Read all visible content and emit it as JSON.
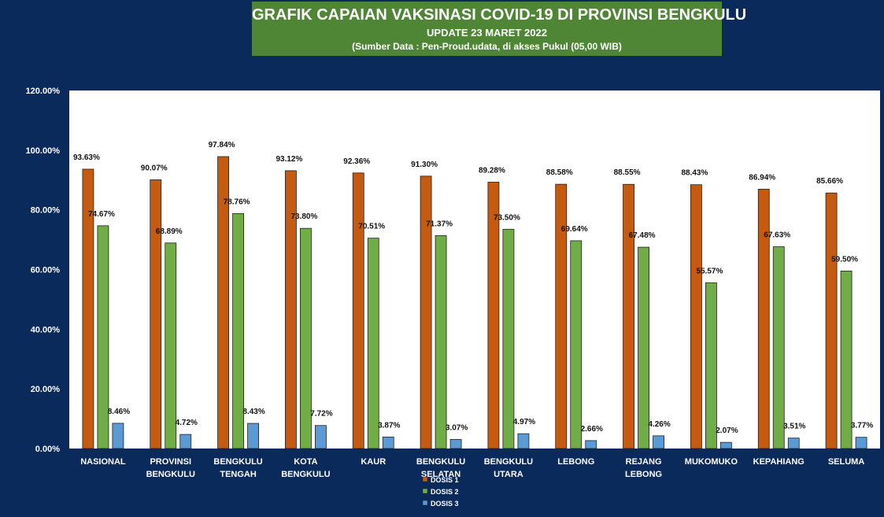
{
  "header": {
    "title": "GRAFIK CAPAIAN VAKSINASI COVID-19 DI PROVINSI BENGKULU",
    "update": "UPDATE  23  MARET  2022",
    "source": "(Sumber Data : Pen-Proud.udata, di akses  Pukul (05,00 WIB)"
  },
  "colors": {
    "background": "#0b2a5c",
    "plot_area": "#ffffff",
    "title_box": "#4f8636",
    "dosis1": "#c55a11",
    "dosis2": "#70ad47",
    "dosis3": "#5b9bd5"
  },
  "chart_data": {
    "type": "bar",
    "title": "GRAFIK CAPAIAN VAKSINASI COVID-19 DI PROVINSI BENGKULU",
    "xlabel": "",
    "ylabel": "",
    "ylim": [
      0,
      120
    ],
    "yticks": [
      "0.00%",
      "20.00%",
      "40.00%",
      "60.00%",
      "80.00%",
      "100.00%",
      "120.00%"
    ],
    "grid": false,
    "legend_position": "bottom-center",
    "categories": [
      [
        "NASIONAL"
      ],
      [
        "PROVINSI",
        "BENGKULU"
      ],
      [
        "BENGKULU",
        "TENGAH"
      ],
      [
        "KOTA",
        "BENGKULU"
      ],
      [
        "KAUR"
      ],
      [
        "BENGKULU",
        "SELATAN"
      ],
      [
        "BENGKULU",
        "UTARA"
      ],
      [
        "LEBONG"
      ],
      [
        "REJANG",
        "LEBONG"
      ],
      [
        "MUKOMUKO"
      ],
      [
        "KEPAHIANG"
      ],
      [
        "SELUMA"
      ]
    ],
    "series": [
      {
        "name": "DOSIS 1",
        "values": [
          93.63,
          90.07,
          97.84,
          93.12,
          92.36,
          91.3,
          89.28,
          88.58,
          88.55,
          88.43,
          86.94,
          85.66
        ],
        "labels": [
          "93.63%",
          "90.07%",
          "97.84%",
          "93.12%",
          "92.36%",
          "91.30%",
          "89.28%",
          "88.58%",
          "88.55%",
          "88.43%",
          "86.94%",
          "85.66%"
        ]
      },
      {
        "name": "DOSIS 2",
        "values": [
          74.67,
          68.89,
          78.76,
          73.8,
          70.51,
          71.37,
          73.5,
          69.64,
          67.48,
          55.57,
          67.63,
          59.5
        ],
        "labels": [
          "74.67%",
          "68.89%",
          "78.76%",
          "73.80%",
          "70.51%",
          "71.37%",
          "73.50%",
          "69.64%",
          "67.48%",
          "55.57%",
          "67.63%",
          "59.50%"
        ]
      },
      {
        "name": "DOSIS 3",
        "values": [
          8.46,
          4.72,
          8.43,
          7.72,
          3.87,
          3.07,
          4.97,
          2.66,
          4.26,
          2.07,
          3.51,
          3.77
        ],
        "labels": [
          "8.46%",
          "4.72%",
          "8.43%",
          "7.72%",
          "3.87%",
          "3.07%",
          "4.97%",
          "2.66%",
          "4.26%",
          "2.07%",
          "3.51%",
          "3.77%"
        ]
      }
    ]
  }
}
